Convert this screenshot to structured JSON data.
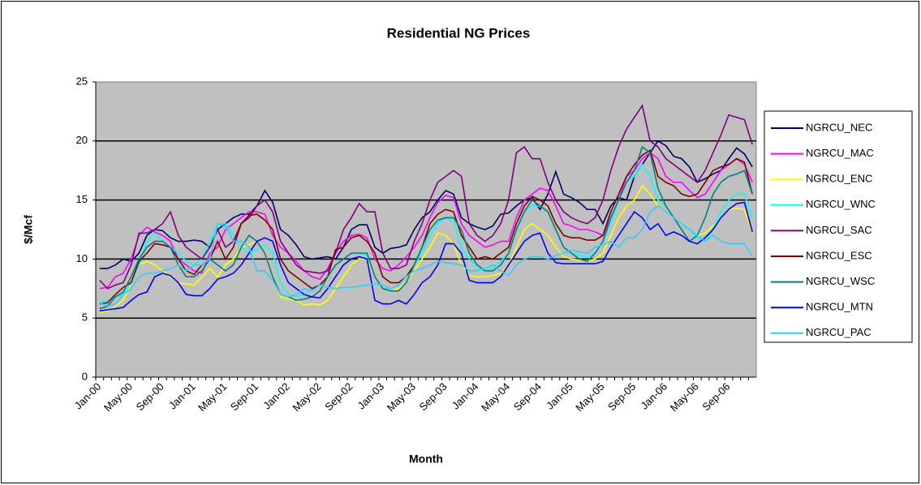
{
  "chart_data": {
    "type": "line",
    "title": "Residential NG Prices",
    "x_label": "Month",
    "y_label": "$/Mcf",
    "categories": [
      "Jan-00",
      null,
      null,
      null,
      "May-00",
      null,
      null,
      null,
      "Sep-00",
      null,
      null,
      null,
      "Jan-01",
      null,
      null,
      null,
      "May-01",
      null,
      null,
      null,
      "Sep-01",
      null,
      null,
      null,
      "Jan-02",
      null,
      null,
      null,
      "May-02",
      null,
      null,
      null,
      "Sep-02",
      null,
      null,
      null,
      "Jan-03",
      null,
      null,
      null,
      "May-03",
      null,
      null,
      null,
      "Sep-03",
      null,
      null,
      null,
      "Jan-04",
      null,
      null,
      null,
      "May-04",
      null,
      null,
      null,
      "Sep-04",
      null,
      null,
      null,
      "Jan-05",
      null,
      null,
      null,
      "May-05",
      null,
      null,
      null,
      "Sep-05",
      null,
      null,
      null,
      "Jan-06",
      null,
      null,
      null,
      "May-06",
      null,
      null,
      null,
      "Sep-06",
      null,
      null,
      null
    ],
    "ylim": [
      0,
      25
    ],
    "yticks": [
      0,
      5,
      10,
      15,
      20,
      25
    ],
    "grid": true,
    "legend": "right",
    "series": [
      {
        "name": "NGRCU_NEC",
        "color": "#000066",
        "values": [
          9.2,
          9.2,
          9.5,
          10.0,
          9.8,
          10.5,
          12.0,
          12.5,
          12.4,
          11.8,
          11.5,
          11.5,
          11.6,
          11.5,
          11.0,
          12.5,
          13.0,
          13.5,
          13.8,
          13.8,
          14.5,
          15.8,
          14.8,
          12.5,
          12.0,
          11.2,
          10.2,
          10.0,
          10.1,
          10.2,
          10.0,
          11.0,
          12.5,
          12.9,
          12.9,
          11.0,
          10.5,
          10.9,
          11.0,
          11.2,
          12.5,
          13.5,
          14.0,
          15.0,
          15.8,
          15.5,
          13.5,
          13.0,
          12.7,
          12.5,
          12.8,
          13.8,
          13.9,
          14.5,
          15.0,
          15.2,
          14.2,
          15.5,
          17.4,
          15.5,
          15.2,
          14.8,
          14.2,
          14.2,
          13.0,
          14.5,
          15.2,
          15.0,
          17.0,
          18.0,
          19.0,
          20.0,
          19.6,
          18.7,
          18.5,
          17.8,
          16.5,
          16.8,
          17.2,
          17.5,
          18.5,
          19.4,
          18.9,
          17.8
        ]
      },
      {
        "name": "NGRCU_MAC",
        "color": "#ff00ff",
        "values": [
          7.5,
          7.6,
          8.5,
          8.8,
          10.0,
          12.0,
          12.7,
          12.3,
          12.0,
          11.5,
          10.0,
          9.5,
          9.0,
          8.8,
          10.5,
          11.0,
          12.5,
          13.0,
          13.5,
          14.0,
          14.0,
          13.8,
          12.0,
          11.0,
          10.5,
          9.8,
          9.0,
          8.5,
          8.3,
          9.2,
          10.5,
          11.5,
          12.0,
          12.1,
          11.8,
          10.0,
          9.2,
          9.0,
          9.5,
          10.2,
          11.0,
          12.0,
          13.5,
          14.8,
          15.4,
          15.2,
          13.0,
          12.0,
          11.5,
          11.0,
          11.2,
          11.5,
          11.5,
          13.5,
          15.0,
          15.5,
          16.0,
          15.8,
          14.5,
          13.0,
          12.8,
          12.5,
          12.5,
          12.3,
          12.0,
          13.5,
          15.0,
          17.0,
          17.5,
          18.5,
          19.0,
          18.5,
          17.0,
          16.5,
          16.5,
          15.8,
          15.2,
          15.5,
          16.5,
          17.5,
          18.0,
          18.5,
          18.0,
          16.5
        ]
      },
      {
        "name": "NGRCU_ENC",
        "color": "#ffff00",
        "values": [
          5.5,
          5.6,
          6.0,
          6.5,
          8.0,
          9.5,
          9.8,
          9.5,
          9.0,
          8.5,
          8.0,
          7.9,
          7.8,
          8.5,
          9.2,
          8.5,
          9.5,
          10.0,
          11.0,
          11.2,
          11.5,
          10.5,
          8.5,
          6.8,
          6.6,
          6.5,
          6.1,
          6.2,
          6.1,
          6.5,
          7.5,
          8.5,
          9.5,
          10.0,
          10.0,
          8.5,
          7.5,
          7.3,
          7.5,
          8.0,
          9.0,
          10.0,
          11.0,
          12.2,
          12.0,
          11.3,
          9.5,
          8.6,
          8.5,
          8.5,
          8.6,
          8.8,
          9.5,
          11.0,
          12.5,
          13.0,
          12.5,
          12.0,
          11.0,
          10.2,
          10.0,
          9.9,
          9.8,
          10.0,
          10.5,
          12.0,
          13.5,
          14.5,
          15.0,
          16.2,
          15.5,
          14.5,
          14.0,
          13.5,
          13.0,
          12.5,
          12.0,
          12.2,
          12.8,
          13.5,
          14.2,
          14.3,
          14.2,
          12.2
        ]
      },
      {
        "name": "NGRCU_WNC",
        "color": "#00ffff",
        "values": [
          6.3,
          6.5,
          6.8,
          7.0,
          8.0,
          9.5,
          11.5,
          12.2,
          11.5,
          11.0,
          10.5,
          9.8,
          9.5,
          10.0,
          11.5,
          13.0,
          13.0,
          12.0,
          11.0,
          10.5,
          10.8,
          11.2,
          10.5,
          8.0,
          7.0,
          6.8,
          7.0,
          7.4,
          7.8,
          8.5,
          9.5,
          10.0,
          10.5,
          10.5,
          10.3,
          8.5,
          7.5,
          7.5,
          7.8,
          8.5,
          9.5,
          10.5,
          12.0,
          13.0,
          13.5,
          13.2,
          11.0,
          10.0,
          9.2,
          9.0,
          9.3,
          9.8,
          10.5,
          12.5,
          14.0,
          14.5,
          14.5,
          14.0,
          12.5,
          11.0,
          10.5,
          10.3,
          10.2,
          10.5,
          11.5,
          13.0,
          15.0,
          16.5,
          17.0,
          18.0,
          17.0,
          15.0,
          14.5,
          13.5,
          13.0,
          12.5,
          11.8,
          11.5,
          12.5,
          14.0,
          15.0,
          15.5,
          15.5,
          13.5
        ]
      },
      {
        "name": "NGRCU_SAC",
        "color": "#800080",
        "values": [
          8.2,
          7.5,
          7.8,
          8.0,
          9.5,
          12.2,
          12.2,
          12.5,
          13.0,
          14.0,
          12.0,
          11.0,
          10.5,
          10.0,
          11.0,
          12.5,
          11.0,
          11.5,
          13.0,
          13.5,
          14.5,
          15.0,
          14.0,
          11.5,
          10.5,
          9.5,
          9.0,
          8.9,
          8.8,
          9.0,
          10.5,
          12.5,
          13.5,
          14.7,
          14.0,
          14.0,
          10.5,
          9.2,
          9.2,
          9.5,
          11.5,
          13.0,
          15.0,
          16.5,
          17.0,
          17.5,
          17.0,
          13.0,
          12.0,
          11.5,
          12.0,
          13.0,
          15.0,
          19.0,
          19.5,
          18.5,
          18.5,
          16.5,
          15.0,
          14.0,
          13.5,
          13.2,
          13.0,
          13.5,
          15.0,
          17.5,
          19.5,
          21.0,
          22.0,
          23.0,
          20.0,
          19.5,
          18.5,
          18.0,
          17.5,
          17.0,
          16.5,
          17.5,
          19.0,
          20.5,
          22.2,
          22.0,
          21.8,
          19.7
        ]
      },
      {
        "name": "NGRCU_ESC",
        "color": "#800000",
        "values": [
          6.2,
          6.3,
          7.0,
          7.6,
          8.0,
          9.8,
          10.5,
          11.3,
          11.2,
          11.0,
          10.0,
          9.0,
          8.7,
          9.5,
          10.0,
          11.5,
          10.0,
          11.0,
          13.0,
          13.7,
          13.8,
          13.3,
          12.5,
          10.0,
          9.0,
          8.5,
          8.0,
          7.5,
          7.8,
          8.5,
          10.8,
          11.0,
          11.8,
          12.0,
          11.5,
          10.5,
          8.5,
          8.0,
          8.0,
          8.5,
          9.5,
          11.0,
          13.0,
          13.8,
          14.2,
          14.0,
          12.0,
          11.0,
          10.0,
          10.2,
          10.0,
          10.5,
          11.0,
          13.0,
          14.5,
          15.3,
          15.0,
          14.5,
          13.0,
          12.0,
          11.8,
          11.8,
          11.6,
          11.6,
          12.0,
          14.0,
          15.5,
          17.0,
          18.0,
          18.8,
          19.2,
          17.0,
          16.5,
          16.2,
          15.5,
          15.3,
          15.5,
          16.5,
          17.5,
          17.8,
          18.0,
          18.5,
          18.2,
          15.5
        ]
      },
      {
        "name": "NGRCU_WSC",
        "color": "#008080",
        "values": [
          5.8,
          6.0,
          6.8,
          7.2,
          8.5,
          10.0,
          11.0,
          11.5,
          11.5,
          11.0,
          9.5,
          8.5,
          8.5,
          9.0,
          10.0,
          9.5,
          9.0,
          9.5,
          11.0,
          12.0,
          11.5,
          10.5,
          8.5,
          7.0,
          6.8,
          6.5,
          6.6,
          6.8,
          7.3,
          8.5,
          9.5,
          10.0,
          10.5,
          10.5,
          10.5,
          8.5,
          7.5,
          7.3,
          7.3,
          8.0,
          9.5,
          11.0,
          12.5,
          13.3,
          13.5,
          13.5,
          12.5,
          10.5,
          9.5,
          9.0,
          9.0,
          9.5,
          10.5,
          12.5,
          14.0,
          15.0,
          14.5,
          14.0,
          12.5,
          11.0,
          10.5,
          10.0,
          9.8,
          10.5,
          11.5,
          13.5,
          15.0,
          16.5,
          17.5,
          19.5,
          19.0,
          16.0,
          14.5,
          13.5,
          12.5,
          11.5,
          12.0,
          13.5,
          15.5,
          16.5,
          17.0,
          17.2,
          17.5,
          15.5
        ]
      },
      {
        "name": "NGRCU_MTN",
        "color": "#0000ff",
        "values": [
          5.6,
          5.7,
          5.8,
          5.9,
          6.5,
          7.0,
          7.2,
          8.5,
          8.8,
          8.6,
          8.0,
          7.0,
          6.9,
          6.9,
          7.5,
          8.3,
          8.5,
          8.8,
          9.5,
          10.5,
          11.5,
          11.8,
          11.5,
          9.5,
          8.0,
          7.5,
          7.0,
          6.8,
          6.7,
          7.5,
          8.5,
          9.5,
          10.0,
          10.2,
          10.0,
          6.5,
          6.2,
          6.2,
          6.5,
          6.2,
          7.0,
          8.0,
          8.5,
          9.5,
          11.3,
          11.3,
          10.5,
          8.2,
          8.0,
          8.0,
          8.0,
          8.5,
          9.5,
          10.5,
          11.5,
          12.0,
          12.2,
          10.5,
          9.7,
          9.6,
          9.6,
          9.6,
          9.6,
          9.6,
          9.8,
          11.0,
          12.0,
          13.0,
          14.0,
          13.5,
          12.5,
          13.0,
          12.0,
          12.3,
          12.0,
          11.5,
          11.3,
          11.8,
          12.5,
          13.5,
          14.2,
          14.7,
          14.8,
          12.3
        ]
      },
      {
        "name": "NGRCU_PAC",
        "color": "#33ccff",
        "values": [
          6.3,
          6.0,
          6.2,
          7.0,
          7.5,
          8.5,
          8.8,
          8.8,
          9.0,
          9.2,
          9.5,
          9.0,
          9.5,
          9.5,
          10.0,
          13.0,
          12.8,
          11.5,
          11.5,
          11.0,
          9.0,
          9.0,
          8.2,
          7.0,
          6.8,
          7.0,
          7.5,
          7.3,
          7.8,
          7.6,
          7.5,
          7.6,
          7.6,
          7.7,
          7.8,
          7.9,
          7.8,
          7.5,
          7.8,
          8.5,
          9.0,
          9.2,
          9.5,
          9.8,
          9.7,
          9.6,
          9.5,
          9.0,
          9.0,
          9.2,
          9.5,
          9.0,
          8.6,
          9.5,
          10.0,
          10.2,
          10.2,
          10.0,
          10.3,
          10.5,
          10.8,
          10.6,
          10.5,
          11.0,
          11.2,
          11.5,
          11.0,
          11.8,
          11.8,
          12.5,
          14.0,
          14.5,
          14.0,
          13.5,
          13.0,
          12.5,
          12.0,
          11.5,
          12.0,
          11.5,
          11.3,
          11.3,
          11.3,
          10.2
        ]
      }
    ]
  }
}
